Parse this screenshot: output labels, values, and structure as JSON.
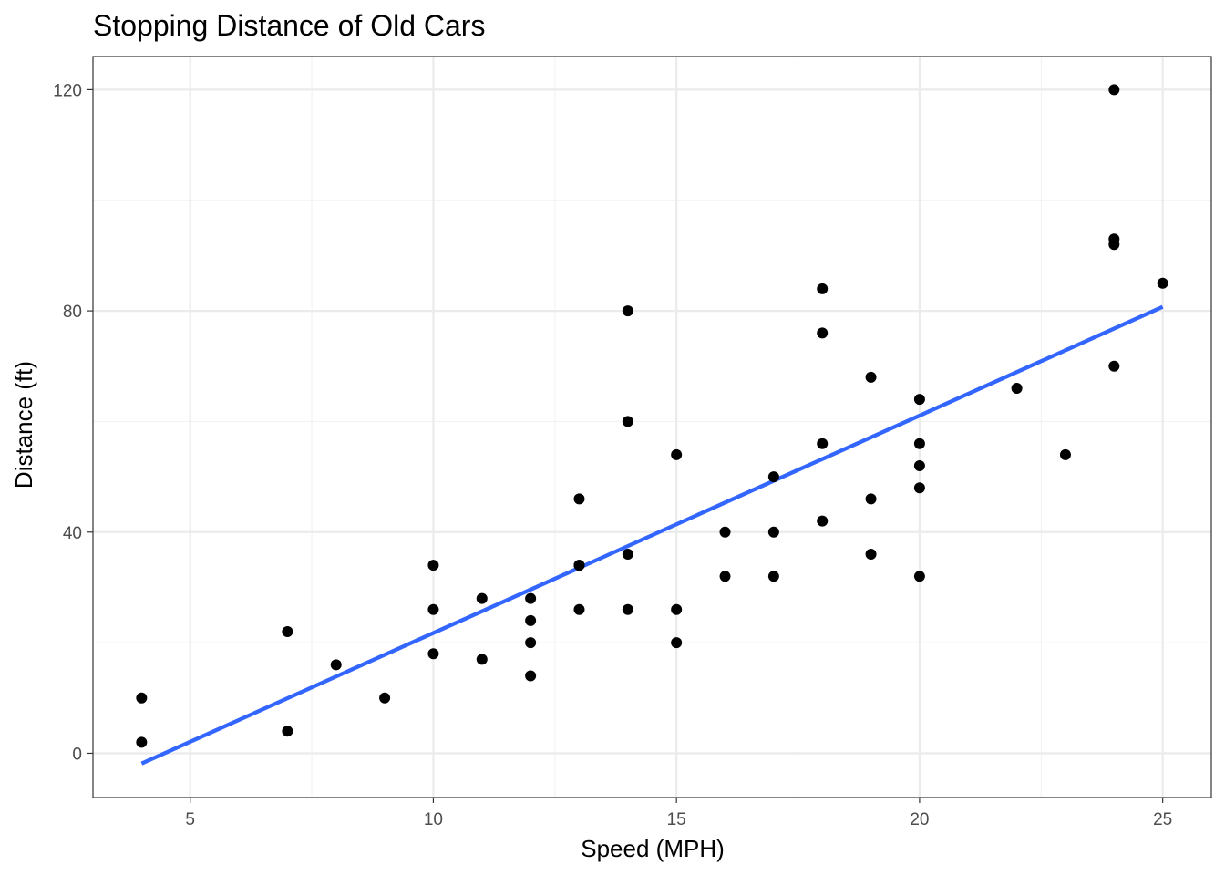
{
  "chart_data": {
    "type": "scatter",
    "title": "Stopping Distance of Old  Cars",
    "xlabel": "Speed (MPH)",
    "ylabel": "Distance (ft)",
    "xlim": [
      3,
      26
    ],
    "ylim": [
      -8,
      126
    ],
    "xticks": [
      5,
      10,
      15,
      20,
      25
    ],
    "yticks": [
      0,
      40,
      80,
      120
    ],
    "x_minor_grid": [
      7.5,
      12.5,
      17.5,
      22.5
    ],
    "y_minor_grid": [
      20,
      60,
      100
    ],
    "grid": true,
    "legend": "none",
    "series": [
      {
        "type": "scatter",
        "x": [
          4,
          4,
          7,
          7,
          8,
          9,
          10,
          10,
          10,
          11,
          11,
          12,
          12,
          12,
          12,
          13,
          13,
          13,
          13,
          14,
          14,
          14,
          14,
          15,
          15,
          15,
          16,
          16,
          17,
          17,
          17,
          18,
          18,
          18,
          18,
          19,
          19,
          19,
          20,
          20,
          20,
          20,
          20,
          22,
          23,
          24,
          24,
          24,
          24,
          25
        ],
        "y": [
          2,
          10,
          4,
          22,
          16,
          10,
          18,
          26,
          34,
          17,
          28,
          14,
          20,
          24,
          28,
          26,
          34,
          34,
          46,
          26,
          36,
          60,
          80,
          20,
          26,
          54,
          32,
          40,
          32,
          40,
          50,
          42,
          56,
          76,
          84,
          36,
          46,
          68,
          32,
          48,
          52,
          56,
          64,
          66,
          54,
          70,
          92,
          93,
          120,
          85
        ]
      },
      {
        "type": "line",
        "x": [
          4,
          25
        ],
        "y": [
          -1.85,
          80.73
        ]
      }
    ],
    "colors": {
      "points": "#000000",
      "fit_line": "#3366FF",
      "major_grid": "#EBEBEB",
      "minor_grid": "#F2F2F2",
      "panel_border": "#333333",
      "tick_label": "#4D4D4D"
    }
  }
}
